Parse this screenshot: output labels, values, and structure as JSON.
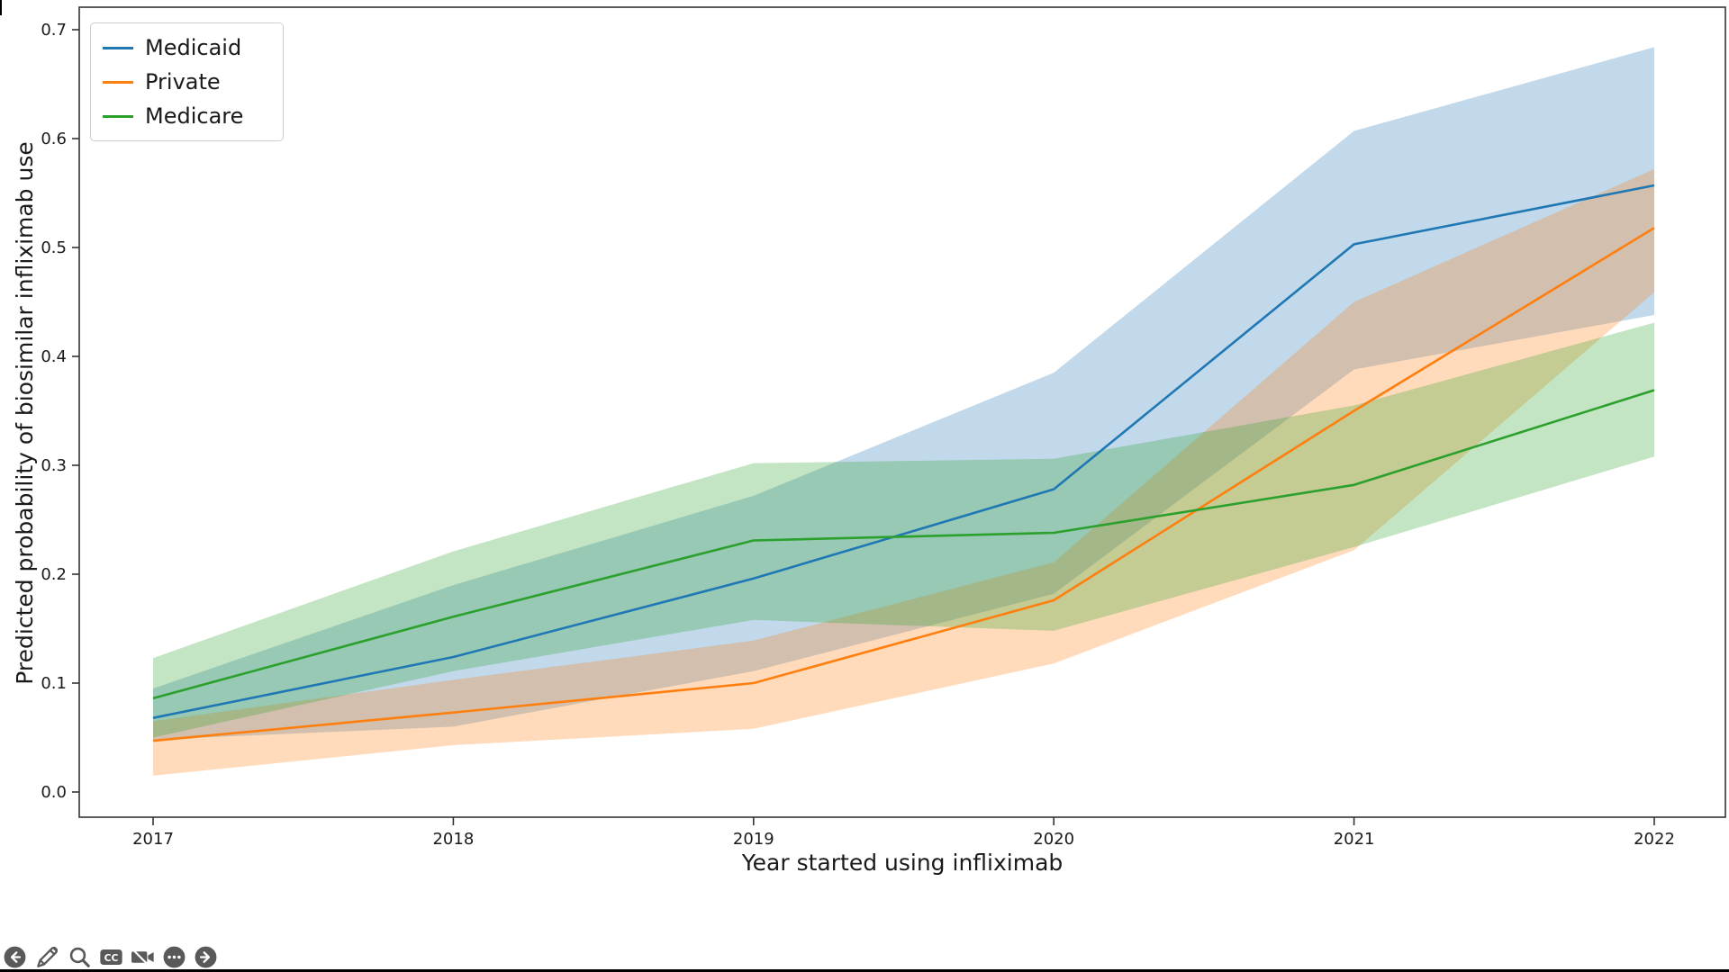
{
  "figure": {
    "background": "#ffffff"
  },
  "chart_data": {
    "type": "line",
    "title": "",
    "xlabel": "Year started using infliximab",
    "ylabel": "Predicted probability of biosimilar infliximab use",
    "x": [
      2017,
      2018,
      2019,
      2020,
      2021,
      2022
    ],
    "x_tick_labels": [
      "2017",
      "2018",
      "2019",
      "2020",
      "2021",
      "2022"
    ],
    "yticks": [
      {
        "label": "0.0",
        "value": 0.0
      },
      {
        "label": "0.1",
        "value": 0.1
      },
      {
        "label": "0.2",
        "value": 0.2
      },
      {
        "label": "0.3",
        "value": 0.3
      },
      {
        "label": "0.4",
        "value": 0.4
      },
      {
        "label": "0.5",
        "value": 0.5
      },
      {
        "label": "0.6",
        "value": 0.6
      },
      {
        "label": "0.7",
        "value": 0.7
      }
    ],
    "ylim": [
      -0.024,
      0.721
    ],
    "grid": false,
    "legend_position": "upper-left",
    "band_opacity": 0.28,
    "series": [
      {
        "name": "Medicaid",
        "color": "#1f77b4",
        "values": [
          0.068,
          0.124,
          0.196,
          0.278,
          0.503,
          0.557
        ],
        "ci_upper": [
          0.095,
          0.19,
          0.272,
          0.385,
          0.607,
          0.684
        ],
        "ci_lower": [
          0.048,
          0.06,
          0.111,
          0.182,
          0.388,
          0.438
        ]
      },
      {
        "name": "Private",
        "color": "#ff7f0e",
        "values": [
          0.047,
          0.073,
          0.1,
          0.176,
          0.35,
          0.518
        ],
        "ci_upper": [
          0.065,
          0.103,
          0.139,
          0.211,
          0.45,
          0.572
        ],
        "ci_lower": [
          0.015,
          0.043,
          0.058,
          0.118,
          0.222,
          0.459
        ]
      },
      {
        "name": "Medicare",
        "color": "#2ca02c",
        "values": [
          0.086,
          0.161,
          0.231,
          0.238,
          0.282,
          0.369
        ],
        "ci_upper": [
          0.123,
          0.221,
          0.302,
          0.306,
          0.355,
          0.431
        ],
        "ci_lower": [
          0.05,
          0.111,
          0.158,
          0.148,
          0.225,
          0.308
        ]
      }
    ]
  },
  "toolbar": {
    "color": "#595959",
    "icons": [
      {
        "name": "back",
        "glyph": "arrow-left-circle"
      },
      {
        "name": "annotate",
        "glyph": "pencil"
      },
      {
        "name": "zoom",
        "glyph": "magnifier"
      },
      {
        "name": "closed-captions",
        "glyph": "cc-badge",
        "label": "CC"
      },
      {
        "name": "camera-off",
        "glyph": "video-off"
      },
      {
        "name": "more-options",
        "glyph": "ellipsis-circle"
      },
      {
        "name": "forward",
        "glyph": "arrow-right-circle"
      }
    ]
  }
}
